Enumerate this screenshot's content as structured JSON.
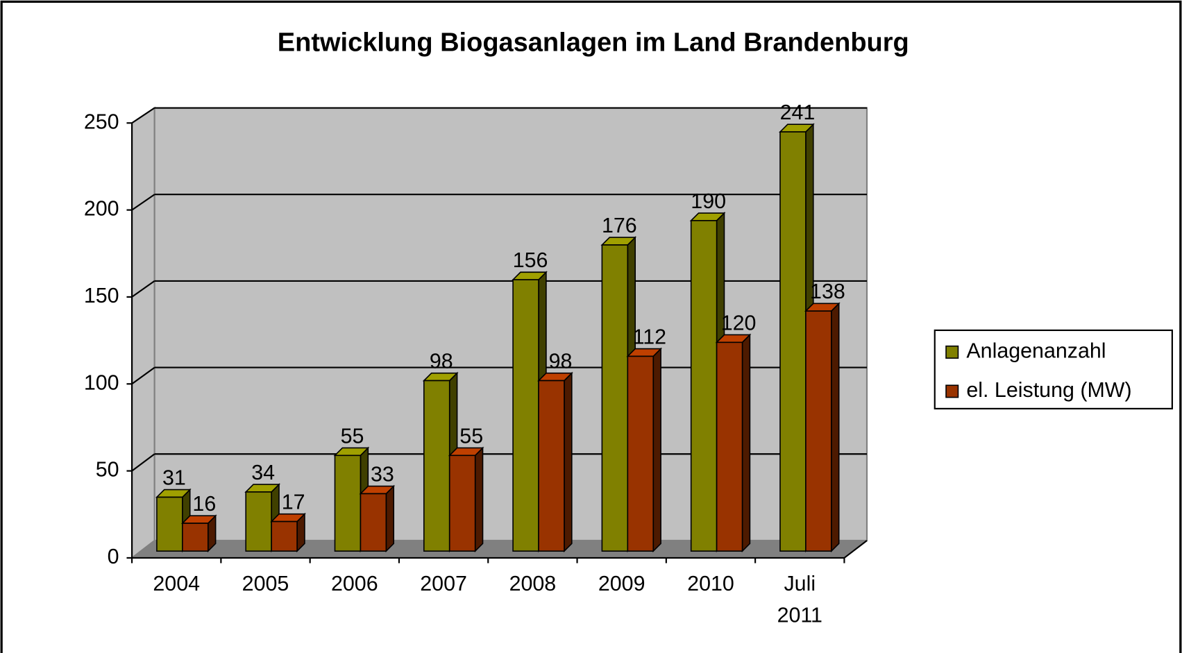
{
  "chart_data": {
    "type": "bar3d",
    "title": "Entwicklung Biogasanlagen im Land Brandenburg",
    "categories": [
      "2004",
      "2005",
      "2006",
      "2007",
      "2008",
      "2009",
      "2010",
      "Juli 2011"
    ],
    "series": [
      {
        "name": "Anlagenanzahl",
        "color": "#808000",
        "values": [
          31,
          34,
          55,
          98,
          156,
          176,
          190,
          241
        ]
      },
      {
        "name": "el. Leistung (MW)",
        "color": "#993300",
        "values": [
          16,
          17,
          33,
          55,
          98,
          112,
          120,
          138
        ]
      }
    ],
    "ylim": [
      0,
      250
    ],
    "yticks": [
      0,
      50,
      100,
      150,
      200,
      250
    ],
    "grid": true,
    "legend": "right"
  }
}
